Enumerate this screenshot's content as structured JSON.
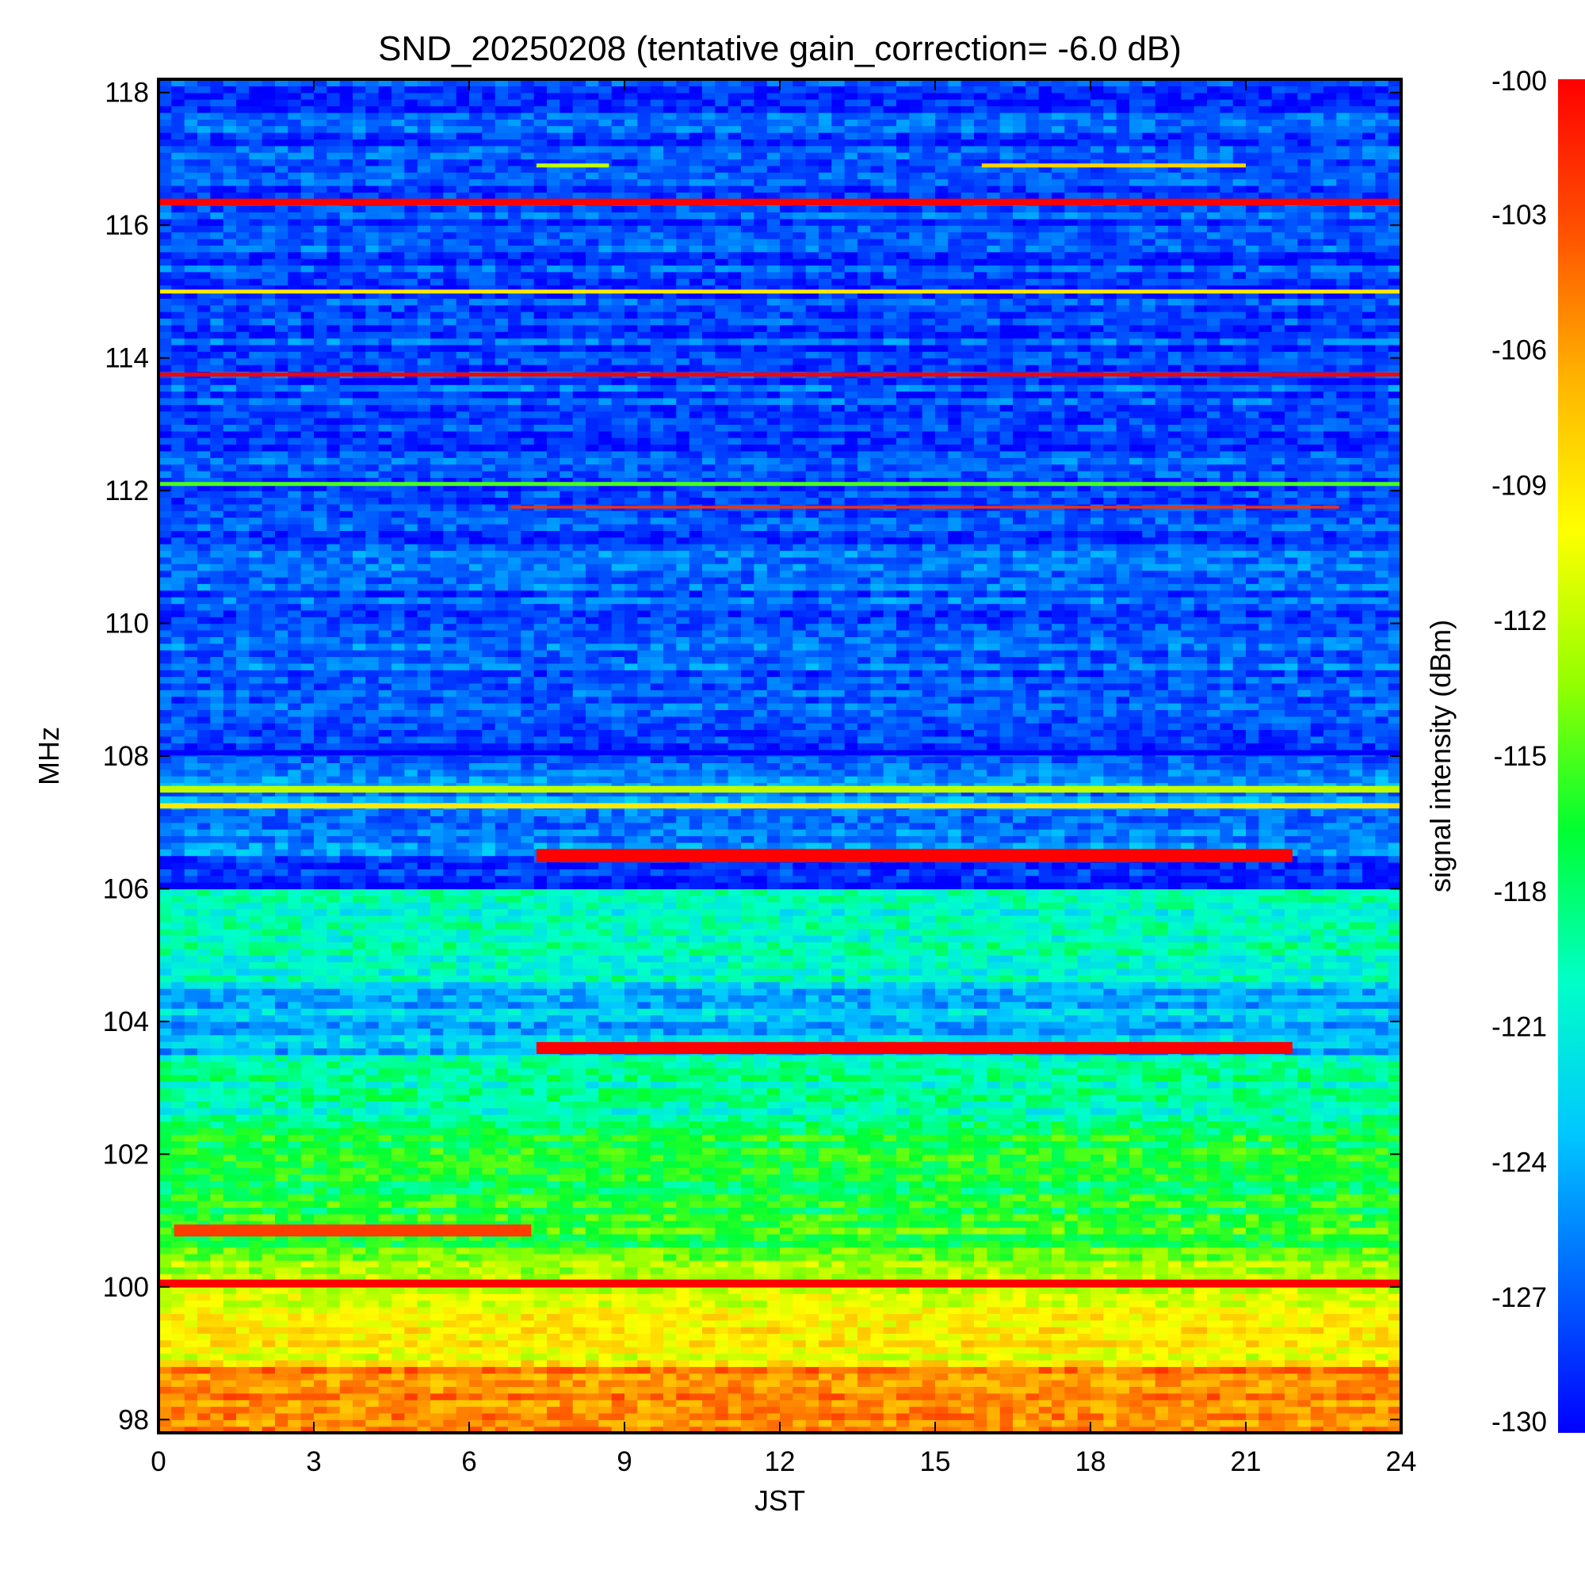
{
  "chart_data": {
    "type": "heatmap",
    "title": "SND_20250208 (tentative gain_correction= -6.0 dB)",
    "xlabel": "JST",
    "ylabel": "MHz",
    "colorbar_label": "signal intensity (dBm)",
    "xlim": [
      0,
      24
    ],
    "ylim": [
      97.8,
      118.2
    ],
    "clim": [
      -130,
      -100
    ],
    "x_ticks": [
      0,
      3,
      6,
      9,
      12,
      15,
      18,
      21,
      24
    ],
    "y_ticks": [
      98,
      100,
      102,
      104,
      106,
      108,
      110,
      112,
      114,
      116,
      118
    ],
    "colorbar_ticks": [
      -100,
      -103,
      -106,
      -109,
      -112,
      -115,
      -118,
      -121,
      -124,
      -127,
      -130
    ],
    "colormap": "jet",
    "colormap_stops": [
      "#0000ff",
      "#0064ff",
      "#00c8ff",
      "#00ffc8",
      "#00ff32",
      "#96ff00",
      "#ffff00",
      "#ffb400",
      "#ff5000",
      "#ff0000"
    ],
    "grid": false,
    "background_bands": [
      {
        "f_min": 97.8,
        "f_max": 98.8,
        "dbm": -105.0
      },
      {
        "f_min": 98.8,
        "f_max": 99.8,
        "dbm": -110.0
      },
      {
        "f_min": 99.8,
        "f_max": 100.4,
        "dbm": -112.0
      },
      {
        "f_min": 100.4,
        "f_max": 101.0,
        "dbm": -115.5
      },
      {
        "f_min": 101.0,
        "f_max": 102.5,
        "dbm": -116.5
      },
      {
        "f_min": 102.5,
        "f_max": 103.5,
        "dbm": -119.5
      },
      {
        "f_min": 103.5,
        "f_max": 104.6,
        "dbm": -123.5
      },
      {
        "f_min": 104.6,
        "f_max": 106.0,
        "dbm": -120.0
      },
      {
        "f_min": 106.0,
        "f_max": 106.5,
        "dbm": -128.5
      },
      {
        "f_min": 106.5,
        "f_max": 108.0,
        "dbm": -125.5
      },
      {
        "f_min": 108.0,
        "f_max": 112.0,
        "dbm": -127.0
      },
      {
        "f_min": 112.0,
        "f_max": 118.2,
        "dbm": -127.5
      }
    ],
    "signals": [
      {
        "freq": 100.05,
        "width": 0.12,
        "t_start": 0,
        "t_end": 24,
        "dbm": -100
      },
      {
        "freq": 100.85,
        "width": 0.18,
        "t_start": 0.3,
        "t_end": 7.2,
        "dbm": -102.5
      },
      {
        "freq": 103.6,
        "width": 0.18,
        "t_start": 7.3,
        "t_end": 21.9,
        "dbm": -100
      },
      {
        "freq": 106.5,
        "width": 0.2,
        "t_start": 7.3,
        "t_end": 21.9,
        "dbm": -100
      },
      {
        "freq": 107.25,
        "width": 0.08,
        "t_start": 0,
        "t_end": 24,
        "dbm": -109
      },
      {
        "freq": 107.5,
        "width": 0.1,
        "t_start": 0,
        "t_end": 24,
        "dbm": -112
      },
      {
        "freq": 108.05,
        "width": 0.08,
        "t_start": 0,
        "t_end": 24,
        "dbm": -130
      },
      {
        "freq": 111.75,
        "width": 0.04,
        "t_start": 6.8,
        "t_end": 22.8,
        "dbm": -102
      },
      {
        "freq": 112.1,
        "width": 0.06,
        "t_start": 0,
        "t_end": 24,
        "dbm": -115
      },
      {
        "freq": 113.75,
        "width": 0.06,
        "t_start": 0,
        "t_end": 24,
        "dbm": -100
      },
      {
        "freq": 115.0,
        "width": 0.06,
        "t_start": 0,
        "t_end": 24,
        "dbm": -109
      },
      {
        "freq": 116.35,
        "width": 0.1,
        "t_start": 0,
        "t_end": 24,
        "dbm": -100
      },
      {
        "freq": 116.9,
        "width": 0.06,
        "t_start": 15.9,
        "t_end": 21.0,
        "dbm": -108
      },
      {
        "freq": 116.9,
        "width": 0.06,
        "t_start": 7.3,
        "t_end": 8.7,
        "dbm": -112
      }
    ]
  }
}
